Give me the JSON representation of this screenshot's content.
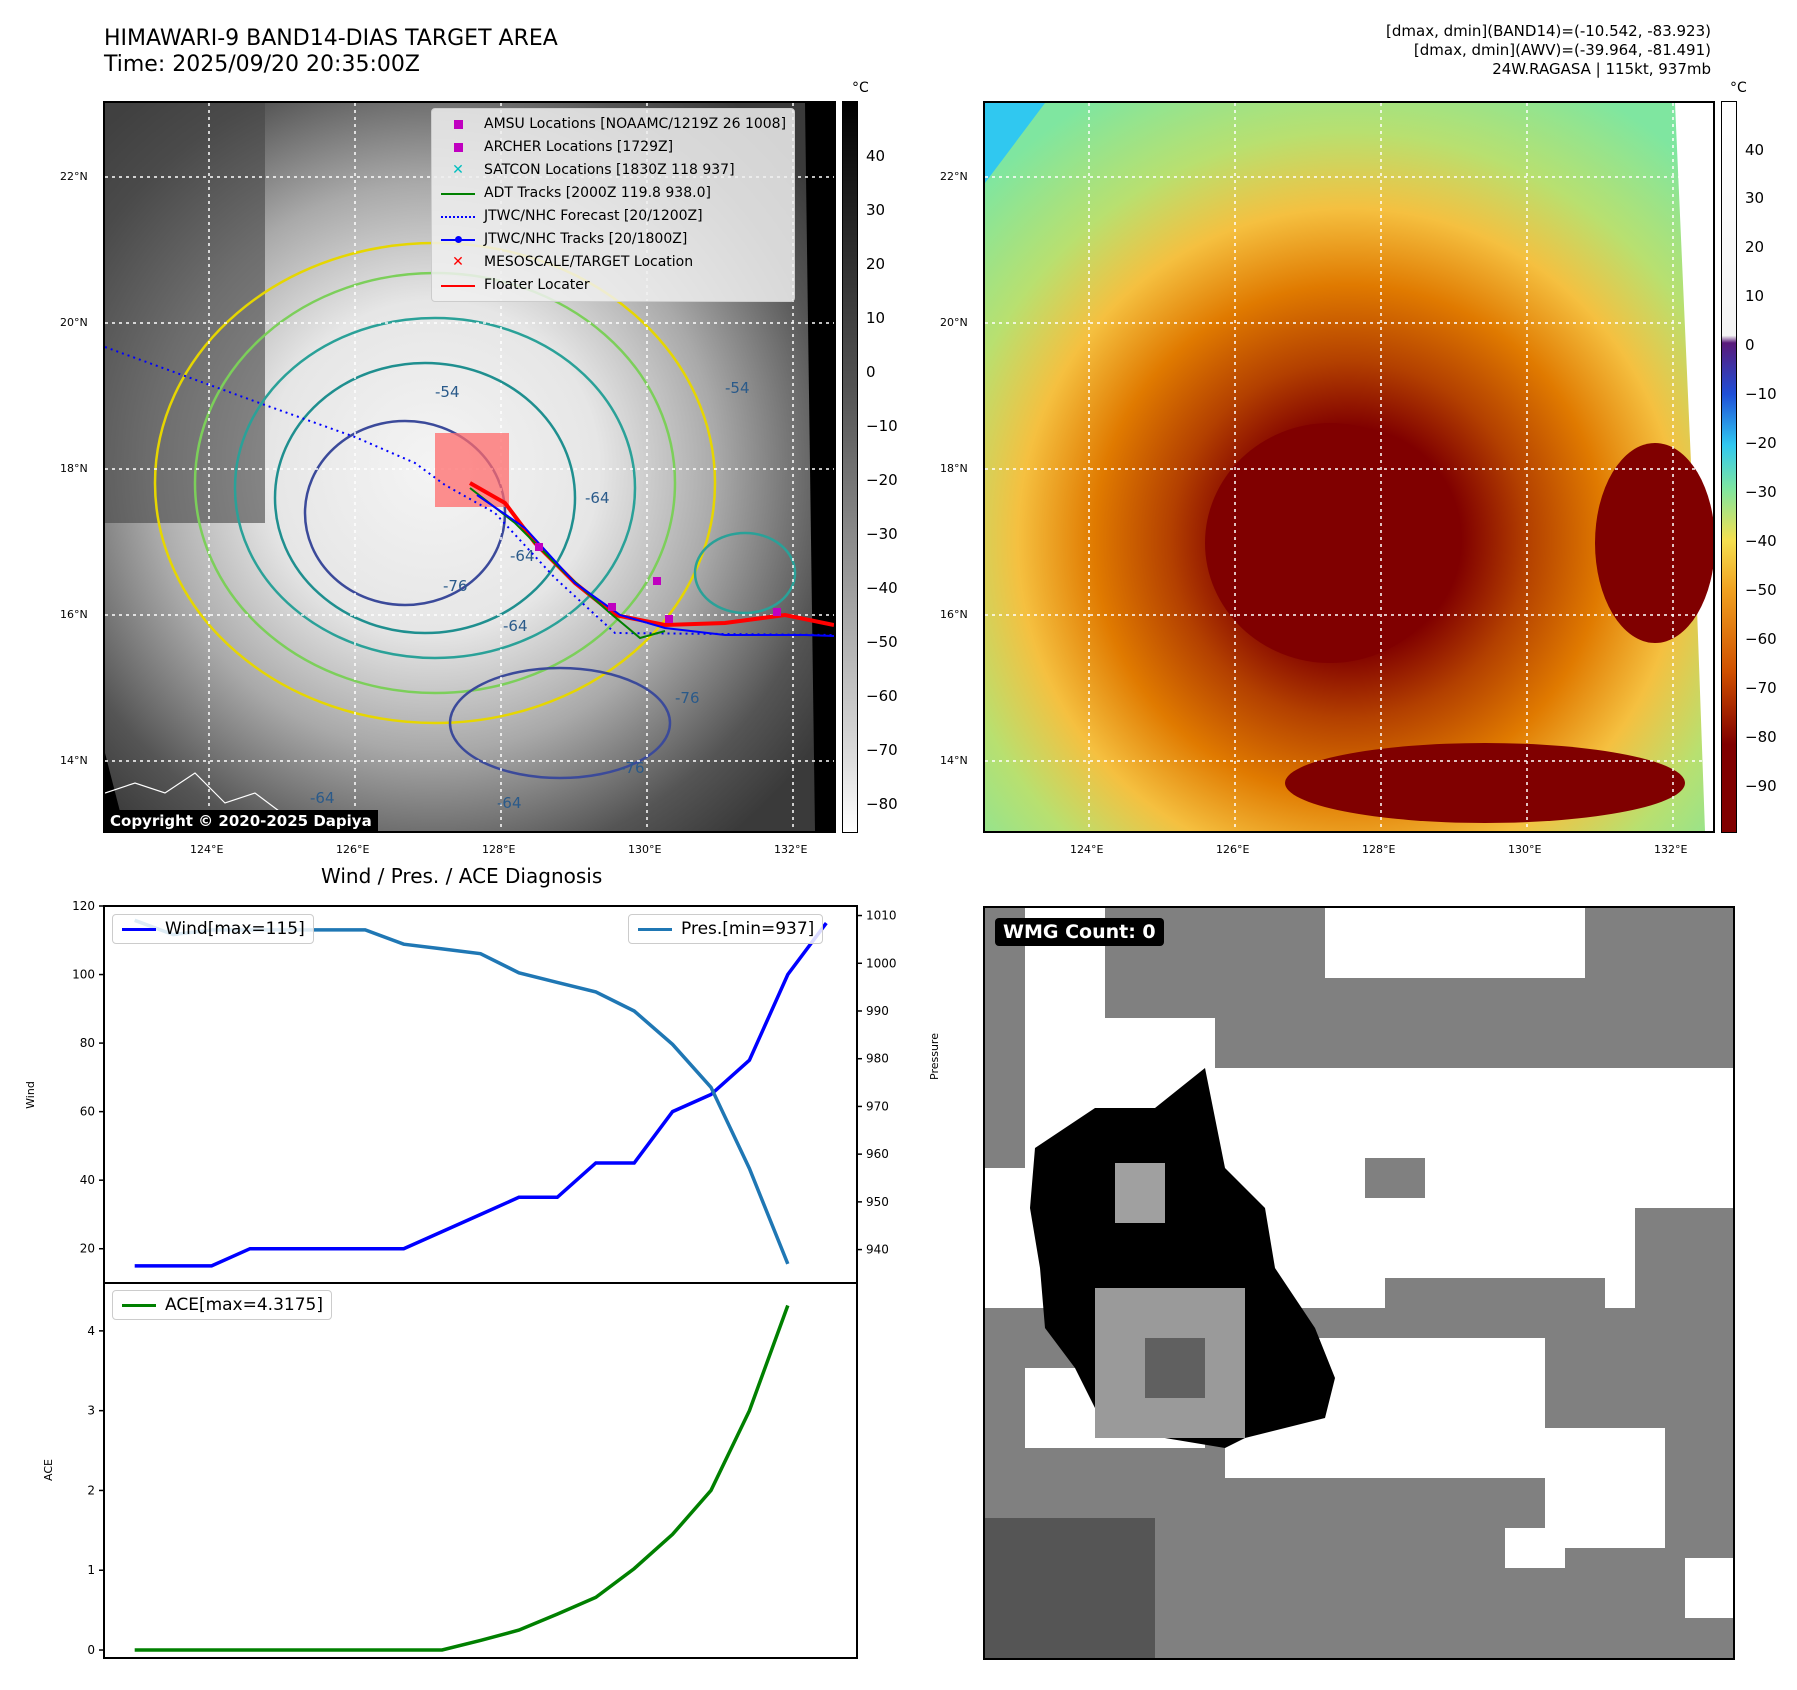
{
  "header": {
    "title_line1": "HIMAWARI-9 BAND14-DIAS TARGET AREA",
    "title_line2": "Time: 2025/09/20 20:35:00Z",
    "right_line1": "[dmax, dmin](BAND14)=(-10.542, -83.923)",
    "right_line2": "[dmax, dmin](AWV)=(-39.964, -81.491)",
    "right_line3": "24W.RAGASA | 115kt, 937mb"
  },
  "map": {
    "lat_labels": [
      "22°N",
      "20°N",
      "18°N",
      "16°N",
      "14°N"
    ],
    "lon_labels": [
      "124°E",
      "126°E",
      "128°E",
      "130°E",
      "132°E"
    ],
    "contour_labels": [
      "-54",
      "-64",
      "-76",
      "-64",
      "-76",
      "-64",
      "-54",
      "-76",
      "-64",
      "-64"
    ],
    "copyright": "Copyright © 2020-2025 Dapiya",
    "colorbar_unit": "°C",
    "colorbar_ticks_left": [
      "40",
      "30",
      "20",
      "10",
      "0",
      "−10",
      "−20",
      "−30",
      "−40",
      "−50",
      "−60",
      "−70",
      "−80"
    ],
    "colorbar_ticks_right": [
      "40",
      "30",
      "20",
      "10",
      "0",
      "−10",
      "−20",
      "−30",
      "−40",
      "−50",
      "−60",
      "−70",
      "−80",
      "−90"
    ]
  },
  "legend": {
    "items": [
      {
        "label": "AMSU Locations [NOAAMC/1219Z 26 1008]",
        "symbol": "square",
        "color": "#c000c0"
      },
      {
        "label": "ARCHER Locations [1729Z]",
        "symbol": "square",
        "color": "#c000c0"
      },
      {
        "label": "SATCON Locations [1830Z 118 937]",
        "symbol": "x",
        "color": "#00bfbf"
      },
      {
        "label": "ADT Tracks [2000Z 119.8 938.0]",
        "symbol": "line",
        "color": "#008000"
      },
      {
        "label": "JTWC/NHC Forecast [20/1200Z]",
        "symbol": "dotted",
        "color": "#0000ff"
      },
      {
        "label": "JTWC/NHC Tracks [20/1800Z]",
        "symbol": "line-dot",
        "color": "#0000ff"
      },
      {
        "label": "MESOSCALE/TARGET Location",
        "symbol": "x",
        "color": "#ff0000"
      },
      {
        "label": "Floater Locater",
        "symbol": "line",
        "color": "#ff0000"
      }
    ]
  },
  "diagnosis": {
    "title": "Wind / Pres. / ACE Diagnosis",
    "wind_legend": "Wind[max=115]",
    "pres_legend": "Pres.[min=937]",
    "ace_legend": "ACE[max=4.3175]",
    "wind_ylabel": "Wind",
    "pres_ylabel": "Pressure",
    "ace_ylabel": "ACE",
    "wind_color": "#0000ff",
    "pres_color": "#1f77b4",
    "ace_color": "#008000"
  },
  "chart_data": [
    {
      "type": "line",
      "title": "Wind / Pres. / ACE Diagnosis",
      "x": [
        0,
        1,
        2,
        3,
        4,
        5,
        6,
        7,
        8,
        9,
        10,
        11,
        12,
        13,
        14,
        15,
        16,
        17,
        18
      ],
      "series": [
        {
          "name": "Wind[max=115]",
          "axis": "left",
          "values": [
            15,
            15,
            15,
            20,
            20,
            20,
            20,
            20,
            25,
            30,
            35,
            35,
            45,
            45,
            60,
            65,
            75,
            100,
            115
          ]
        },
        {
          "name": "Pres.[min=937]",
          "axis": "right",
          "values": [
            1009,
            1006,
            1007,
            1007,
            1007,
            1007,
            1007,
            1004,
            1003,
            1002,
            998,
            996,
            994,
            990,
            983,
            974,
            957,
            937,
            null
          ]
        }
      ],
      "ylabel": "Wind",
      "ylim": [
        10,
        120
      ],
      "yticks": [
        20,
        40,
        60,
        80,
        100,
        120
      ],
      "y2label": "Pressure",
      "y2lim": [
        933,
        1012
      ],
      "y2ticks": [
        940,
        950,
        960,
        970,
        980,
        990,
        1000,
        1010
      ]
    },
    {
      "type": "line",
      "x": [
        0,
        1,
        2,
        3,
        4,
        5,
        6,
        7,
        8,
        9,
        10,
        11,
        12,
        13,
        14,
        15,
        16,
        17,
        18
      ],
      "series": [
        {
          "name": "ACE[max=4.3175]",
          "values": [
            0,
            0,
            0,
            0,
            0,
            0,
            0,
            0,
            0,
            0.12,
            0.25,
            0.45,
            0.66,
            1.02,
            1.45,
            2.0,
            3.0,
            4.3175,
            null
          ]
        }
      ],
      "ylabel": "ACE",
      "ylim": [
        -0.1,
        4.6
      ],
      "yticks": [
        0,
        1,
        2,
        3,
        4
      ]
    }
  ],
  "wmg": {
    "label": "WMG Count: 0"
  }
}
